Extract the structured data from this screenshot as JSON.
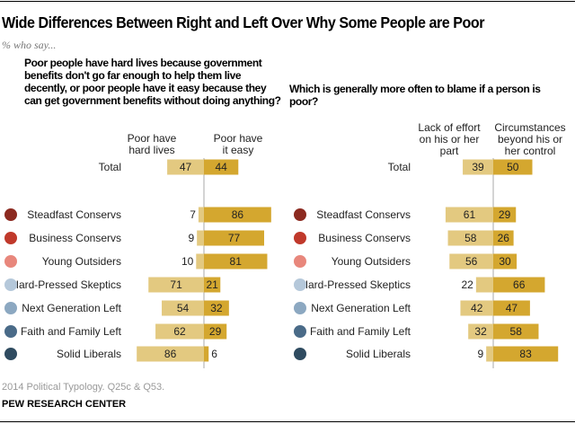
{
  "title": "Wide Differences Between Right and Left Over Why Some People are Poor",
  "subtitle": "% who say...",
  "note": "2014 Political Typology. Q25c & Q53.",
  "source": "PEW RESEARCH CENTER",
  "colors": {
    "light_bar": "#e3c980",
    "dark_bar": "#d4a72f",
    "axis": "#aaaaaa"
  },
  "chart_data": [
    {
      "type": "bar",
      "question": "Poor people have hard lives because government benefits don't go far enough to help them live decently, or poor people have it easy because they can get government benefits without doing anything?",
      "categories": [
        "Total",
        "Steadfast Conservs",
        "Business Conservs",
        "Young Outsiders",
        "Hard-Pressed Skeptics",
        "Next Generation Left",
        "Faith and Family Left",
        "Solid Liberals"
      ],
      "series": [
        {
          "name": "Poor have hard lives",
          "values": [
            47,
            7,
            9,
            10,
            71,
            54,
            62,
            86
          ]
        },
        {
          "name": "Poor have it easy",
          "values": [
            44,
            86,
            77,
            81,
            21,
            32,
            29,
            6
          ]
        }
      ]
    },
    {
      "type": "bar",
      "question": "Which is generally more often to blame if a person is poor?",
      "categories": [
        "Total",
        "Steadfast Conservs",
        "Business Conservs",
        "Young Outsiders",
        "Hard-Pressed Skeptics",
        "Next Generation Left",
        "Faith and Family Left",
        "Solid Liberals"
      ],
      "series": [
        {
          "name": "Lack of effort on his or her part",
          "values": [
            39,
            61,
            58,
            56,
            22,
            42,
            32,
            9
          ]
        },
        {
          "name": "Circumstances beyond his or her control",
          "values": [
            50,
            29,
            26,
            30,
            66,
            47,
            58,
            83
          ]
        }
      ]
    }
  ],
  "group_colors": [
    "#8c2a20",
    "#c0392b",
    "#e8877c",
    "#b5c8da",
    "#8ca8c1",
    "#4a6b88",
    "#2f4b60"
  ]
}
